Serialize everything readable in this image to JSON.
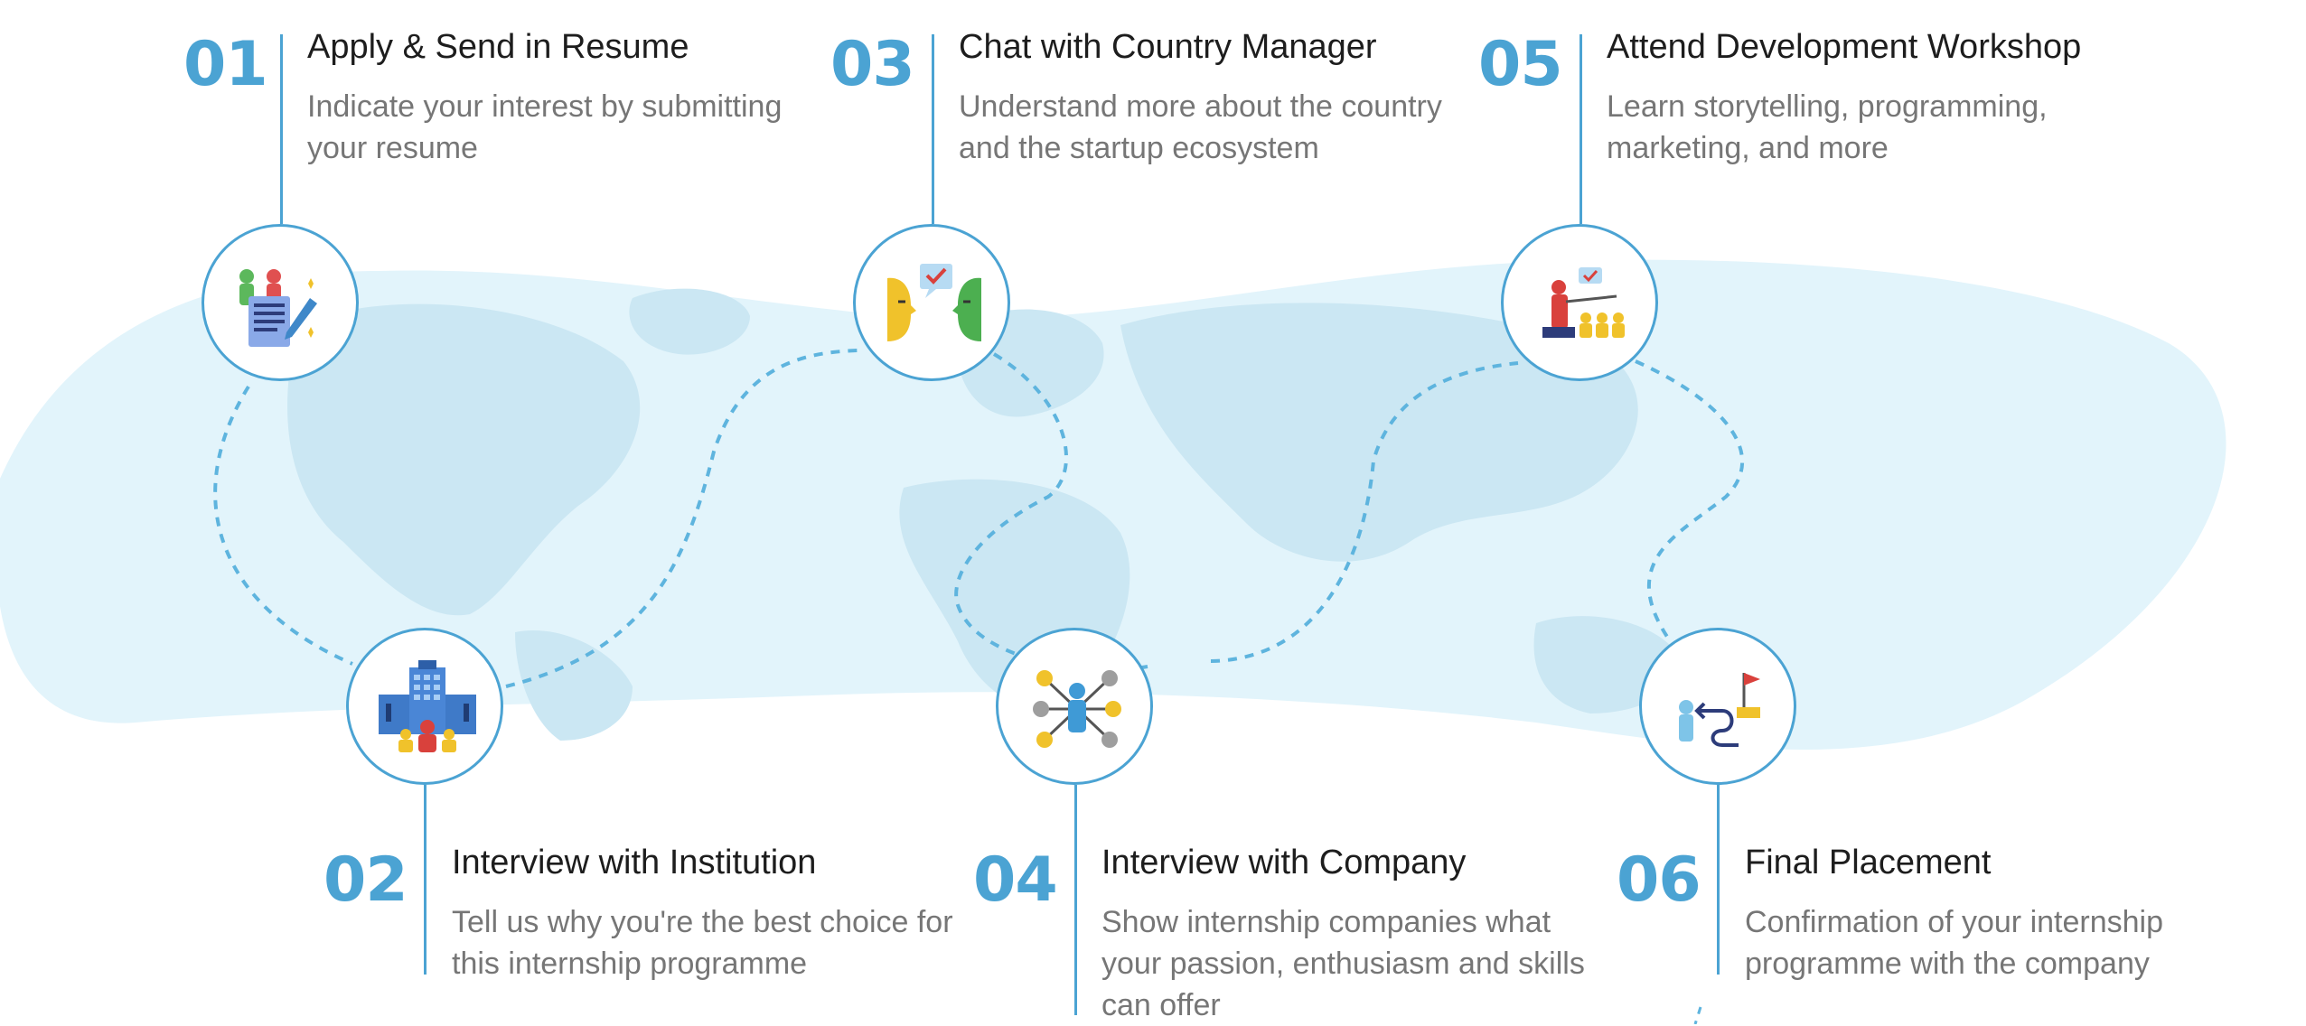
{
  "steps": [
    {
      "number": "01",
      "title": "Apply & Send in Resume",
      "description": "Indicate your interest by submitting your resume",
      "icon": "resume-icon"
    },
    {
      "number": "02",
      "title": "Interview with Institution",
      "description": "Tell us why you're the best choice for this internship programme",
      "icon": "institution-building-icon"
    },
    {
      "number": "03",
      "title": "Chat with Country Manager",
      "description": "Understand more about the country and the startup ecosystem",
      "icon": "chat-faces-icon"
    },
    {
      "number": "04",
      "title": "Interview with Company",
      "description": "Show internship companies what your passion, enthusiasm and skills can offer",
      "icon": "network-money-icon"
    },
    {
      "number": "05",
      "title": "Attend Development Workshop",
      "description": "Learn storytelling, programming, marketing, and more",
      "icon": "presentation-icon"
    },
    {
      "number": "06",
      "title": "Final Placement",
      "description": "Confirmation of your internship programme with the company",
      "icon": "path-flag-icon"
    }
  ],
  "colors": {
    "accent": "#4ba3d3",
    "map_background": "#e2f4fb",
    "land": "#cbe7f3",
    "title_text": "#1d1d1d",
    "description_text": "#767676"
  }
}
